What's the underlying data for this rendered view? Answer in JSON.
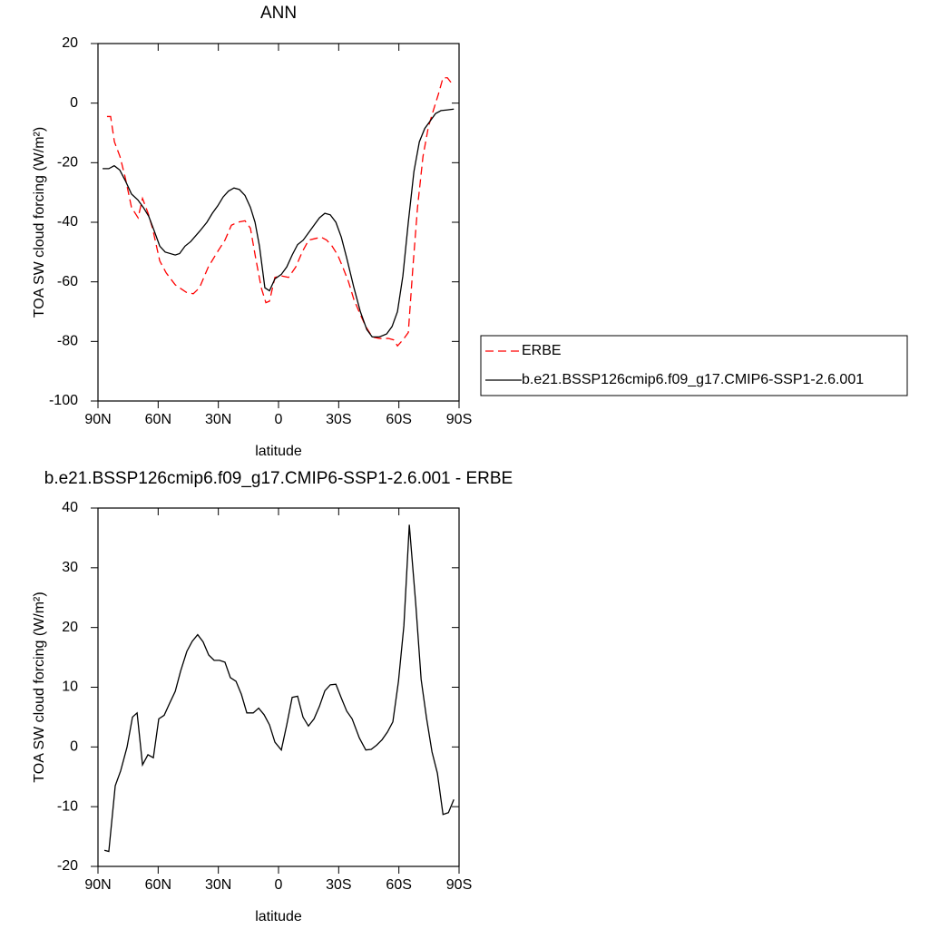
{
  "chart_data": [
    {
      "type": "line",
      "title": "ANN",
      "xlabel": "latitude",
      "ylabel": "TOA SW cloud forcing (W/m²)",
      "xlim": [
        90,
        -90
      ],
      "ylim": [
        -100,
        20
      ],
      "xticks": [
        {
          "value": 90,
          "label": "90N"
        },
        {
          "value": 60,
          "label": "60N"
        },
        {
          "value": 30,
          "label": "30N"
        },
        0,
        {
          "value": -30,
          "label": "30S"
        },
        {
          "value": -60,
          "label": "60S"
        },
        {
          "value": -90,
          "label": "90S"
        }
      ],
      "yticks": [
        20,
        0,
        -20,
        -40,
        -60,
        -80,
        -100
      ],
      "legend": "right",
      "series": [
        {
          "name": "ERBE",
          "color": "#ff0000",
          "style": "dashed",
          "x": [
            85.5,
            83.7,
            81.8,
            79,
            76.4,
            73.3,
            70,
            67.8,
            65,
            62.8,
            59.2,
            56,
            51.5,
            46,
            42.5,
            39.4,
            35,
            30.5,
            26.7,
            23.5,
            20.4,
            16.7,
            14,
            11.4,
            8.6,
            6.3,
            4.5,
            1.8,
            -1.4,
            -5,
            -8.6,
            -11.8,
            -15,
            -18.1,
            -21.3,
            -24,
            -26.7,
            -29.5,
            -32,
            -34.9,
            -37.6,
            -40.8,
            -43.5,
            -46.7,
            -50.3,
            -54.8,
            -57.5,
            -59.3,
            -62,
            -64.7,
            -67,
            -69.3,
            -72,
            -74.7,
            -77.4,
            -79.7,
            -82,
            -84.2,
            -86.5
          ],
          "values": [
            -4.5,
            -4.5,
            -13,
            -18,
            -25,
            -35,
            -38.5,
            -32,
            -37,
            -42,
            -53,
            -57,
            -61,
            -63.5,
            -64,
            -62,
            -55,
            -50,
            -46,
            -41,
            -40,
            -39.5,
            -42,
            -52,
            -62,
            -67,
            -66.5,
            -58.5,
            -58,
            -58.5,
            -55,
            -50,
            -46,
            -45.5,
            -45,
            -46,
            -48,
            -51,
            -55,
            -60,
            -66,
            -71,
            -75,
            -78.5,
            -79,
            -79,
            -79.5,
            -81.5,
            -79.5,
            -77,
            -55,
            -35,
            -18,
            -8,
            -2,
            3,
            8.5,
            8.5,
            6.5
          ]
        },
        {
          "name": "b.e21.BSSP126cmip6.f09_g17.CMIP6-SSP1-2.6.001",
          "color": "#000000",
          "style": "solid",
          "x": [
            87.7,
            84.6,
            81.9,
            79.1,
            76.4,
            73.3,
            70.1,
            67.4,
            64.7,
            61.9,
            59.2,
            56.5,
            51.5,
            49.3,
            46.6,
            43.8,
            39.3,
            35.7,
            33,
            30.3,
            27.6,
            24.9,
            22.2,
            19.5,
            16.7,
            14,
            11.7,
            9.5,
            6.8,
            4.5,
            1.8,
            -1.4,
            -4.1,
            -6.8,
            -9.5,
            -12.3,
            -15,
            -17.7,
            -20.4,
            -23.1,
            -25.8,
            -28.6,
            -31.3,
            -34,
            -37.6,
            -40.8,
            -44,
            -46.7,
            -50.3,
            -53.9,
            -56.6,
            -59.3,
            -62,
            -64.7,
            -67.5,
            -70.2,
            -72.9,
            -75.6,
            -78.3,
            -81,
            -83.8,
            -87.4
          ],
          "values": [
            -22,
            -22,
            -21,
            -22.5,
            -26,
            -30.5,
            -32.5,
            -35,
            -38,
            -43,
            -48,
            -50,
            -51,
            -50.5,
            -48,
            -46.5,
            -43,
            -40,
            -37,
            -34.5,
            -31.5,
            -29.5,
            -28.5,
            -29,
            -31,
            -35,
            -40,
            -48,
            -62,
            -63,
            -59,
            -57.5,
            -55,
            -51,
            -47.5,
            -46,
            -43.5,
            -41,
            -38.5,
            -37,
            -37.5,
            -40,
            -45,
            -52,
            -62,
            -70,
            -76,
            -78.5,
            -78.5,
            -77.5,
            -75,
            -70,
            -58,
            -40,
            -23,
            -13,
            -8.5,
            -6,
            -3.5,
            -2.5,
            -2.3,
            -2
          ]
        }
      ]
    },
    {
      "type": "line",
      "title": "b.e21.BSSP126cmip6.f09_g17.CMIP6-SSP1-2.6.001 - ERBE",
      "xlabel": "latitude",
      "ylabel": "TOA SW cloud forcing (W/m²)",
      "xlim": [
        90,
        -90
      ],
      "ylim": [
        -20,
        40
      ],
      "xticks": [
        {
          "value": 90,
          "label": "90N"
        },
        {
          "value": 60,
          "label": "60N"
        },
        {
          "value": 30,
          "label": "30N"
        },
        0,
        {
          "value": -30,
          "label": "30S"
        },
        {
          "value": -60,
          "label": "60S"
        },
        {
          "value": -90,
          "label": "90S"
        }
      ],
      "yticks": [
        40,
        30,
        20,
        10,
        0,
        -10,
        -20
      ],
      "color": "#000000",
      "x": [
        86.8,
        84.6,
        81.4,
        78.7,
        75.5,
        72.8,
        70.5,
        67.8,
        65.1,
        62.4,
        59.7,
        57,
        54.3,
        51.5,
        48.8,
        45.7,
        43,
        40.3,
        37.6,
        34.8,
        32.1,
        29.4,
        26.7,
        24,
        21.2,
        18.5,
        15.8,
        12.6,
        9.9,
        7.2,
        4.5,
        1.8,
        -1.4,
        -4.1,
        -6.8,
        -9.5,
        -12.2,
        -14.9,
        -17.7,
        -20.4,
        -23.1,
        -25.8,
        -28.6,
        -31.3,
        -34,
        -36.7,
        -40.3,
        -43.5,
        -46.2,
        -48.9,
        -51.6,
        -54.3,
        -57,
        -59.8,
        -62.5,
        -65.2,
        -68.4,
        -71.1,
        -73.8,
        -76.5,
        -79.2,
        -82,
        -84.7,
        -87.4
      ],
      "values": [
        -17.3,
        -17.5,
        -6.5,
        -4,
        0,
        5,
        5.7,
        -3,
        -1.3,
        -1.8,
        4.7,
        5.3,
        7.3,
        9.3,
        12.7,
        16,
        17.7,
        18.8,
        17.6,
        15.4,
        14.5,
        14.5,
        14.2,
        11.6,
        11,
        8.8,
        5.7,
        5.7,
        6.5,
        5.4,
        3.7,
        0.8,
        -0.5,
        3.7,
        8.3,
        8.5,
        5,
        3.5,
        4.7,
        6.8,
        9.4,
        10.4,
        10.5,
        8.2,
        6,
        4.7,
        1.5,
        -0.5,
        -0.4,
        0.3,
        1.2,
        2.5,
        4.2,
        11,
        20.3,
        37.2,
        24,
        11.3,
        4.8,
        -0.8,
        -4.4,
        -11.3,
        -11,
        -8.8
      ]
    }
  ]
}
